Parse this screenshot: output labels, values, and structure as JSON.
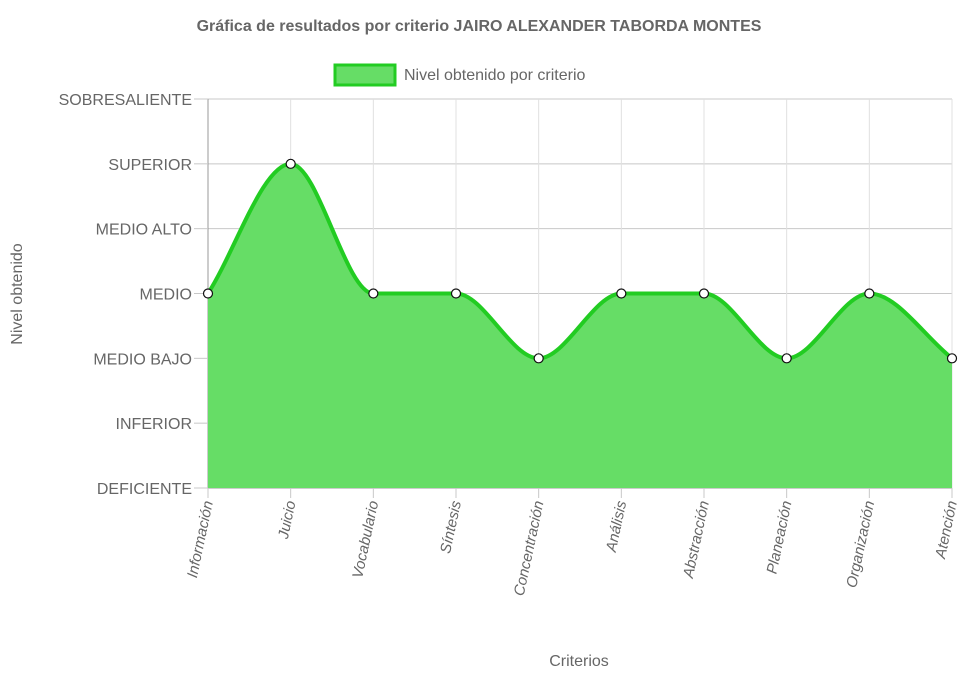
{
  "chart_data": {
    "type": "area",
    "title": "Gráfica de resultados por criterio JAIRO ALEXANDER TABORDA MONTES",
    "xlabel": "Criterios",
    "ylabel": "Nivel obtenido",
    "levels": [
      "DEFICIENTE",
      "INFERIOR",
      "MEDIO BAJO",
      "MEDIO",
      "MEDIO ALTO",
      "SUPERIOR",
      "SOBRESALIENTE"
    ],
    "categories": [
      "Información",
      "Juicio",
      "Vocabulario",
      "Síntesis",
      "Concentración",
      "Análisis",
      "Abstracción",
      "Planeación",
      "Organización",
      "Atención"
    ],
    "series": [
      {
        "name": "Nivel obtenido por criterio",
        "values": [
          "MEDIO",
          "SUPERIOR",
          "MEDIO",
          "MEDIO",
          "MEDIO BAJO",
          "MEDIO",
          "MEDIO",
          "MEDIO BAJO",
          "MEDIO",
          "MEDIO BAJO"
        ],
        "fill_color": "#66dd66",
        "line_color": "#22cc22"
      }
    ],
    "legend_position": "top",
    "grid": true
  }
}
